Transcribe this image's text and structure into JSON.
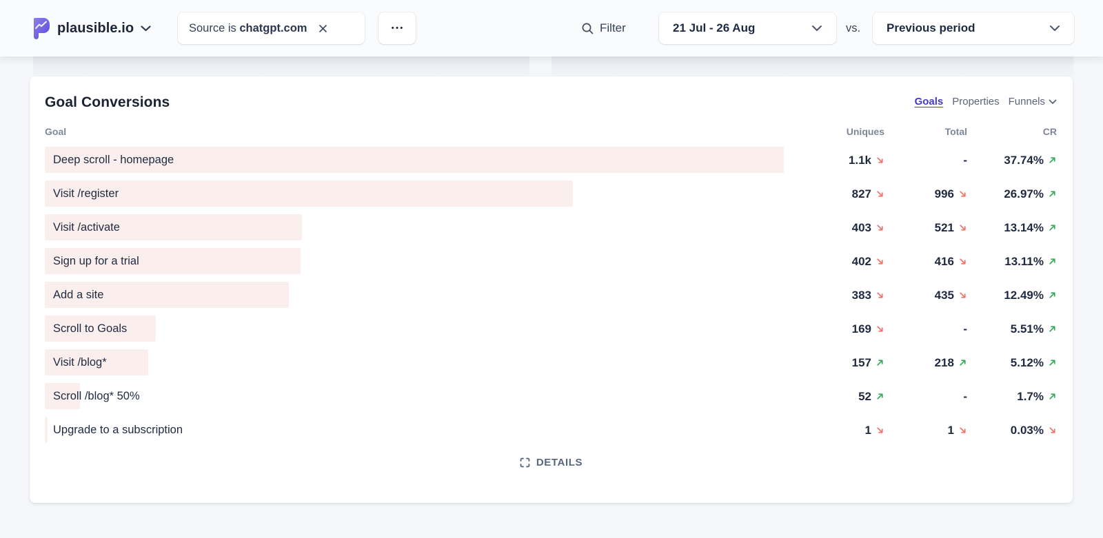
{
  "header": {
    "brand": {
      "name": "plausible.io"
    },
    "filter_chip": {
      "prefix": "Source is",
      "value": "chatgpt.com"
    },
    "more_button_glyph": "•••",
    "filter_label": "Filter",
    "date_range": {
      "selected": "21 Jul - 26 Aug"
    },
    "vs_label": "vs.",
    "comparison": {
      "selected": "Previous period"
    }
  },
  "panel": {
    "title": "Goal Conversions",
    "tabs": [
      {
        "label": "Goals",
        "active": true
      },
      {
        "label": "Properties",
        "active": false
      },
      {
        "label": "Funnels",
        "active": false,
        "has_dropdown": true
      }
    ],
    "columns": {
      "goal": "Goal",
      "uniques": "Uniques",
      "total": "Total",
      "cr": "CR"
    },
    "rows": [
      {
        "goal": "Deep scroll - homepage",
        "bar_pct": 73.0,
        "uniques": "1.1k",
        "uniques_trend": "down",
        "total": "-",
        "total_trend": null,
        "cr": "37.74%",
        "cr_trend": "up"
      },
      {
        "goal": "Visit /register",
        "bar_pct": 52.2,
        "uniques": "827",
        "uniques_trend": "down",
        "total": "996",
        "total_trend": "down",
        "cr": "26.97%",
        "cr_trend": "up"
      },
      {
        "goal": "Visit /activate",
        "bar_pct": 25.4,
        "uniques": "403",
        "uniques_trend": "down",
        "total": "521",
        "total_trend": "down",
        "cr": "13.14%",
        "cr_trend": "up"
      },
      {
        "goal": "Sign up for a trial",
        "bar_pct": 25.3,
        "uniques": "402",
        "uniques_trend": "down",
        "total": "416",
        "total_trend": "down",
        "cr": "13.11%",
        "cr_trend": "up"
      },
      {
        "goal": "Add a site",
        "bar_pct": 24.1,
        "uniques": "383",
        "uniques_trend": "down",
        "total": "435",
        "total_trend": "down",
        "cr": "12.49%",
        "cr_trend": "up"
      },
      {
        "goal": "Scroll to Goals",
        "bar_pct": 11.0,
        "uniques": "169",
        "uniques_trend": "down",
        "total": "-",
        "total_trend": null,
        "cr": "5.51%",
        "cr_trend": "up"
      },
      {
        "goal": "Visit /blog*",
        "bar_pct": 10.2,
        "uniques": "157",
        "uniques_trend": "up",
        "total": "218",
        "total_trend": "up",
        "cr": "5.12%",
        "cr_trend": "up"
      },
      {
        "goal": "Scroll /blog* 50%",
        "bar_pct": 3.5,
        "uniques": "52",
        "uniques_trend": "up",
        "total": "-",
        "total_trend": null,
        "cr": "1.7%",
        "cr_trend": "up"
      },
      {
        "goal": "Upgrade to a subscription",
        "bar_pct": 0.25,
        "uniques": "1",
        "uniques_trend": "down",
        "total": "1",
        "total_trend": "down",
        "cr": "0.03%",
        "cr_trend": "down"
      }
    ],
    "details_label": "DETAILS"
  },
  "colors": {
    "accent": "#4338ca",
    "bar_fill": "#fbefed",
    "trend_up": "#3aa95c",
    "trend_down": "#f1746b"
  }
}
